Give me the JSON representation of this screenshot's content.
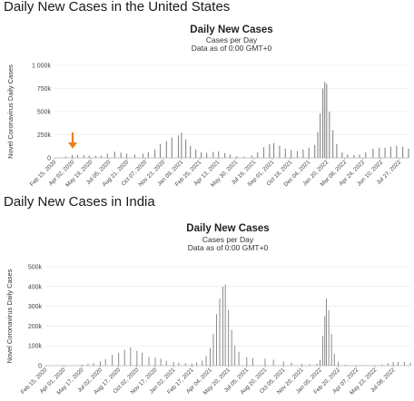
{
  "chart_data": [
    {
      "type": "bar",
      "section_heading": "Daily New Cases in the United States",
      "title": "Daily New Cases",
      "subtitle_1": "Cases per Day",
      "subtitle_2": "Data as of 0:00 GMT+0",
      "xlabel": "",
      "ylabel": "Novel Coronavirus Daily Cases",
      "ylim": [
        0,
        1000000
      ],
      "yticks": [
        0,
        250000,
        500000,
        750000,
        1000000
      ],
      "ytick_labels": [
        "0",
        "250k",
        "500k",
        "750k",
        "1 000k"
      ],
      "x_start": "2020-02-15",
      "x_end": "2022-08-20",
      "xtick_dates": [
        "2020-02-15",
        "2020-04-02",
        "2020-05-19",
        "2020-07-05",
        "2020-08-21",
        "2020-10-07",
        "2020-11-23",
        "2021-01-09",
        "2021-02-25",
        "2021-04-13",
        "2021-05-30",
        "2021-07-16",
        "2021-09-01",
        "2021-10-18",
        "2021-12-04",
        "2022-01-20",
        "2022-03-08",
        "2022-04-24",
        "2022-06-10",
        "2022-07-27"
      ],
      "xtick_labels": [
        "Feb 15, 2020",
        "Apr 02, 2020",
        "May 19, 2020",
        "Jul 05, 2020",
        "Aug 21, 2020",
        "Oct 07, 2020",
        "Nov 23, 2020",
        "Jan 09, 2021",
        "Feb 25, 2021",
        "Apr 13, 2021",
        "May 30, 2021",
        "Jul 16, 2021",
        "Sep 01, 2021",
        "Oct 18, 2021",
        "Dec 04, 2021",
        "Jan 20, 2022",
        "Mar 08, 2022",
        "Apr 24, 2022",
        "Jun 10, 2022",
        "Jul 27, 2022"
      ],
      "series": [
        {
          "dates": [
            "2020-02-15",
            "2020-03-01",
            "2020-03-15",
            "2020-04-01",
            "2020-04-15",
            "2020-05-01",
            "2020-05-15",
            "2020-06-01",
            "2020-06-15",
            "2020-07-01",
            "2020-07-20",
            "2020-08-05",
            "2020-08-20",
            "2020-09-10",
            "2020-10-01",
            "2020-10-15",
            "2020-11-01",
            "2020-11-15",
            "2020-12-01",
            "2020-12-15",
            "2021-01-01",
            "2021-01-09",
            "2021-01-20",
            "2021-02-01",
            "2021-02-15",
            "2021-03-01",
            "2021-03-15",
            "2021-04-01",
            "2021-04-15",
            "2021-05-01",
            "2021-05-15",
            "2021-06-01",
            "2021-06-20",
            "2021-07-10",
            "2021-07-25",
            "2021-08-10",
            "2021-08-25",
            "2021-09-05",
            "2021-09-20",
            "2021-10-05",
            "2021-10-20",
            "2021-11-05",
            "2021-11-20",
            "2021-12-05",
            "2021-12-20",
            "2021-12-28",
            "2022-01-03",
            "2022-01-10",
            "2022-01-15",
            "2022-01-20",
            "2022-01-27",
            "2022-02-05",
            "2022-02-15",
            "2022-03-01",
            "2022-03-15",
            "2022-04-01",
            "2022-04-15",
            "2022-05-01",
            "2022-05-20",
            "2022-06-05",
            "2022-06-20",
            "2022-07-05",
            "2022-07-20",
            "2022-08-05",
            "2022-08-20"
          ],
          "values": [
            0,
            1000,
            15000,
            30000,
            32000,
            28000,
            25000,
            22000,
            24000,
            45000,
            67000,
            55000,
            45000,
            38000,
            45000,
            60000,
            90000,
            150000,
            180000,
            220000,
            240000,
            270000,
            200000,
            130000,
            90000,
            60000,
            55000,
            65000,
            70000,
            50000,
            35000,
            18000,
            12000,
            25000,
            60000,
            115000,
            150000,
            160000,
            130000,
            100000,
            85000,
            75000,
            90000,
            110000,
            140000,
            280000,
            480000,
            750000,
            820000,
            800000,
            500000,
            300000,
            150000,
            60000,
            35000,
            30000,
            35000,
            60000,
            100000,
            110000,
            110000,
            120000,
            130000,
            120000,
            100000
          ]
        }
      ],
      "annotations": [
        {
          "type": "arrow",
          "color": "#f07f17",
          "date": "2020-04-02"
        }
      ]
    },
    {
      "type": "bar",
      "section_heading": "Daily New Cases in India",
      "title": "Daily New Cases",
      "subtitle_1": "Cases per Day",
      "subtitle_2": "Data as of 0:00 GMT+0",
      "xlabel": "",
      "ylabel": "Novel Coronavirus Daily Cases",
      "ylim": [
        0,
        500000
      ],
      "yticks": [
        0,
        100000,
        200000,
        300000,
        400000,
        500000
      ],
      "ytick_labels": [
        "0",
        "100k",
        "200k",
        "300k",
        "400k",
        "500k"
      ],
      "x_start": "2020-02-15",
      "x_end": "2022-08-20",
      "xtick_dates": [
        "2020-02-15",
        "2020-04-01",
        "2020-05-17",
        "2020-07-02",
        "2020-08-17",
        "2020-10-02",
        "2020-11-17",
        "2021-01-02",
        "2021-02-17",
        "2021-04-04",
        "2021-05-20",
        "2021-07-05",
        "2021-08-20",
        "2021-10-05",
        "2021-11-20",
        "2022-01-05",
        "2022-02-20",
        "2022-04-07",
        "2022-05-23",
        "2022-07-08"
      ],
      "xtick_labels": [
        "Feb 15, 2020",
        "Apr 01, 2020",
        "May 17, 2020",
        "Jul 02, 2020",
        "Aug 17, 2020",
        "Oct 02, 2020",
        "Nov 17, 2020",
        "Jan 02, 2021",
        "Feb 17, 2021",
        "Apr 04, 2021",
        "May 20, 2021",
        "Jul 05, 2021",
        "Aug 20, 2021",
        "Oct 05, 2021",
        "Nov 20, 2021",
        "Jan 05, 2022",
        "Feb 20, 2022",
        "Apr 07, 2022",
        "May 23, 2022",
        "Jul 08, 2022"
      ],
      "series": [
        {
          "dates": [
            "2020-02-15",
            "2020-03-15",
            "2020-04-01",
            "2020-05-01",
            "2020-05-17",
            "2020-06-01",
            "2020-06-15",
            "2020-07-02",
            "2020-07-15",
            "2020-08-01",
            "2020-08-17",
            "2020-09-01",
            "2020-09-16",
            "2020-10-02",
            "2020-10-15",
            "2020-11-01",
            "2020-11-17",
            "2020-12-01",
            "2020-12-15",
            "2021-01-02",
            "2021-01-15",
            "2021-02-01",
            "2021-02-17",
            "2021-03-01",
            "2021-03-15",
            "2021-03-25",
            "2021-04-04",
            "2021-04-12",
            "2021-04-20",
            "2021-04-28",
            "2021-05-06",
            "2021-05-12",
            "2021-05-20",
            "2021-05-28",
            "2021-06-05",
            "2021-06-15",
            "2021-07-05",
            "2021-07-20",
            "2021-08-20",
            "2021-09-10",
            "2021-10-05",
            "2021-10-25",
            "2021-11-20",
            "2021-12-10",
            "2021-12-28",
            "2022-01-05",
            "2022-01-12",
            "2022-01-17",
            "2022-01-21",
            "2022-01-27",
            "2022-02-03",
            "2022-02-10",
            "2022-02-20",
            "2022-03-10",
            "2022-04-07",
            "2022-05-01",
            "2022-05-23",
            "2022-06-10",
            "2022-06-25",
            "2022-07-08",
            "2022-07-20",
            "2022-08-05",
            "2022-08-20"
          ],
          "values": [
            0,
            100,
            500,
            2000,
            5000,
            9000,
            13000,
            22000,
            32000,
            55000,
            65000,
            80000,
            92000,
            75000,
            65000,
            45000,
            40000,
            35000,
            25000,
            18000,
            15000,
            12000,
            11000,
            16000,
            25000,
            50000,
            90000,
            160000,
            260000,
            340000,
            400000,
            410000,
            280000,
            180000,
            100000,
            70000,
            42000,
            38000,
            35000,
            30000,
            20000,
            15000,
            10000,
            8000,
            10000,
            30000,
            150000,
            250000,
            340000,
            280000,
            160000,
            60000,
            20000,
            5000,
            1500,
            3000,
            2500,
            6000,
            12000,
            18000,
            20000,
            19000,
            15000
          ]
        }
      ]
    }
  ]
}
